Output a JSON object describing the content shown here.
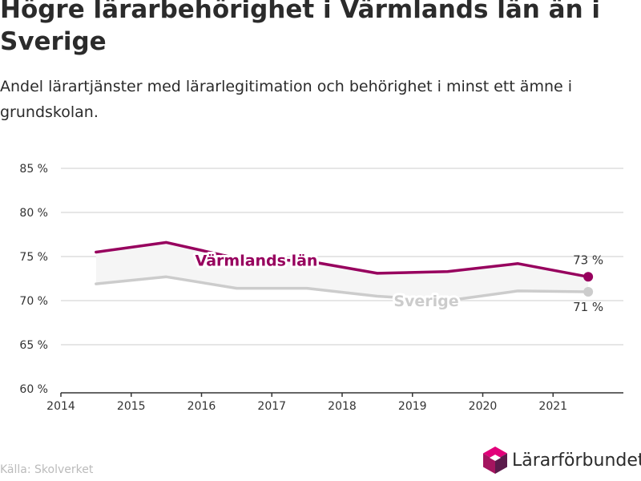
{
  "title": "Högre lärarbehörighet i Värmlands län än i Sverige",
  "subtitle": "Andel lärartjänster med lärarlegitimation och behörighet i minst ett ämne i grundskolan.",
  "source": "Källa: Skolverket",
  "brand": {
    "name": "Lärarförbundet",
    "colors": [
      "#a4155f",
      "#e2007a",
      "#5b1b4b"
    ]
  },
  "chart_data": {
    "type": "line",
    "title": "Högre lärarbehörighet i Värmlands län än i Sverige",
    "subtitle": "Andel lärartjänster med lärarlegitimation och behörighet i minst ett ämne i grundskolan.",
    "xlabel": "",
    "ylabel": "",
    "xlim": [
      2014,
      2022
    ],
    "xticks": [
      "2014",
      "2015",
      "2016",
      "2017",
      "2018",
      "2019",
      "2020",
      "2021"
    ],
    "ylim": [
      60,
      85
    ],
    "yticks": [
      "60 %",
      "65 %",
      "70 %",
      "75 %",
      "80 %",
      "85 %"
    ],
    "grid": "horizontal",
    "legend": "none",
    "x": [
      2014.5,
      2015.5,
      2016.5,
      2017.5,
      2018.5,
      2019.5,
      2020.5,
      2021.5
    ],
    "series": [
      {
        "name": "Värmlands län",
        "color": "#97005e",
        "values": [
          75.5,
          76.6,
          74.8,
          74.5,
          73.1,
          73.3,
          74.2,
          72.7
        ],
        "end_label": "73 %",
        "label_position": "middle"
      },
      {
        "name": "Sverige",
        "color": "#cccccc",
        "values": [
          71.9,
          72.7,
          71.4,
          71.4,
          70.5,
          70.0,
          71.1,
          71.0
        ],
        "end_label": "71 %",
        "label_position": "middle"
      }
    ],
    "band_fill": "#f5f5f5"
  }
}
